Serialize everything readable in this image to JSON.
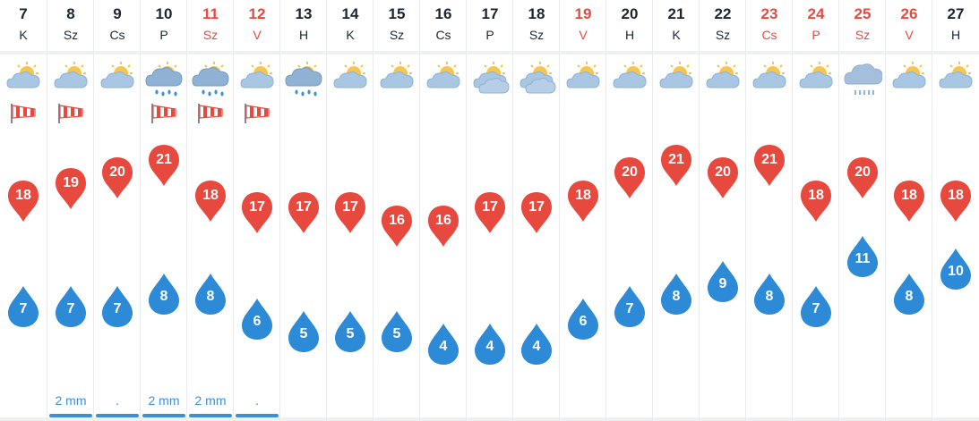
{
  "colors": {
    "max_pin": "#e8493e",
    "min_pin": "#2c8ad6",
    "weekend": "#e8493e",
    "precip": "#3e8fd6"
  },
  "days": [
    {
      "date": "7",
      "dow": "K",
      "weekend": false,
      "icon": "partly-cloudy-icon",
      "wind": true,
      "max": "18",
      "min": "7",
      "precip": "",
      "bar": false
    },
    {
      "date": "8",
      "dow": "Sz",
      "weekend": false,
      "icon": "partly-cloudy-icon",
      "wind": true,
      "max": "19",
      "min": "7",
      "precip": "2 mm",
      "bar": true
    },
    {
      "date": "9",
      "dow": "Cs",
      "weekend": false,
      "icon": "partly-cloudy-icon",
      "wind": false,
      "max": "20",
      "min": "7",
      "precip": ".",
      "bar": true
    },
    {
      "date": "10",
      "dow": "P",
      "weekend": false,
      "icon": "sun-rain-cloud-icon",
      "wind": true,
      "max": "21",
      "min": "8",
      "precip": "2 mm",
      "bar": true
    },
    {
      "date": "11",
      "dow": "Sz",
      "weekend": true,
      "icon": "sun-rain-cloud-icon",
      "wind": true,
      "max": "18",
      "min": "8",
      "precip": "2 mm",
      "bar": true
    },
    {
      "date": "12",
      "dow": "V",
      "weekend": true,
      "icon": "partly-cloudy-icon",
      "wind": true,
      "max": "17",
      "min": "6",
      "precip": ".",
      "bar": true
    },
    {
      "date": "13",
      "dow": "H",
      "weekend": false,
      "icon": "sun-rain-cloud-icon",
      "wind": false,
      "max": "17",
      "min": "5",
      "precip": "",
      "bar": false
    },
    {
      "date": "14",
      "dow": "K",
      "weekend": false,
      "icon": "partly-cloudy-icon",
      "wind": false,
      "max": "17",
      "min": "5",
      "precip": "",
      "bar": false
    },
    {
      "date": "15",
      "dow": "Sz",
      "weekend": false,
      "icon": "partly-cloudy-icon",
      "wind": false,
      "max": "16",
      "min": "5",
      "precip": "",
      "bar": false
    },
    {
      "date": "16",
      "dow": "Cs",
      "weekend": false,
      "icon": "partly-cloudy-icon",
      "wind": false,
      "max": "16",
      "min": "4",
      "precip": "",
      "bar": false
    },
    {
      "date": "17",
      "dow": "P",
      "weekend": false,
      "icon": "mostly-cloudy-icon",
      "wind": false,
      "max": "17",
      "min": "4",
      "precip": "",
      "bar": false
    },
    {
      "date": "18",
      "dow": "Sz",
      "weekend": false,
      "icon": "mostly-cloudy-icon",
      "wind": false,
      "max": "17",
      "min": "4",
      "precip": "",
      "bar": false
    },
    {
      "date": "19",
      "dow": "V",
      "weekend": true,
      "icon": "partly-cloudy-icon",
      "wind": false,
      "max": "18",
      "min": "6",
      "precip": "",
      "bar": false
    },
    {
      "date": "20",
      "dow": "H",
      "weekend": false,
      "icon": "partly-cloudy-icon",
      "wind": false,
      "max": "20",
      "min": "7",
      "precip": "",
      "bar": false
    },
    {
      "date": "21",
      "dow": "K",
      "weekend": false,
      "icon": "partly-cloudy-icon",
      "wind": false,
      "max": "21",
      "min": "8",
      "precip": "",
      "bar": false
    },
    {
      "date": "22",
      "dow": "Sz",
      "weekend": false,
      "icon": "partly-cloudy-icon",
      "wind": false,
      "max": "20",
      "min": "9",
      "precip": "",
      "bar": false
    },
    {
      "date": "23",
      "dow": "Cs",
      "weekend": true,
      "icon": "partly-cloudy-icon",
      "wind": false,
      "max": "21",
      "min": "8",
      "precip": "",
      "bar": false
    },
    {
      "date": "24",
      "dow": "P",
      "weekend": true,
      "icon": "partly-cloudy-icon",
      "wind": false,
      "max": "18",
      "min": "7",
      "precip": "",
      "bar": false
    },
    {
      "date": "25",
      "dow": "Sz",
      "weekend": true,
      "icon": "rain-cloud-icon",
      "wind": false,
      "max": "20",
      "min": "11",
      "precip": "",
      "bar": false
    },
    {
      "date": "26",
      "dow": "V",
      "weekend": true,
      "icon": "partly-cloudy-icon",
      "wind": false,
      "max": "18",
      "min": "8",
      "precip": "",
      "bar": false
    },
    {
      "date": "27",
      "dow": "H",
      "weekend": false,
      "icon": "partly-cloudy-icon",
      "wind": false,
      "max": "18",
      "min": "10",
      "precip": "",
      "bar": false
    }
  ]
}
